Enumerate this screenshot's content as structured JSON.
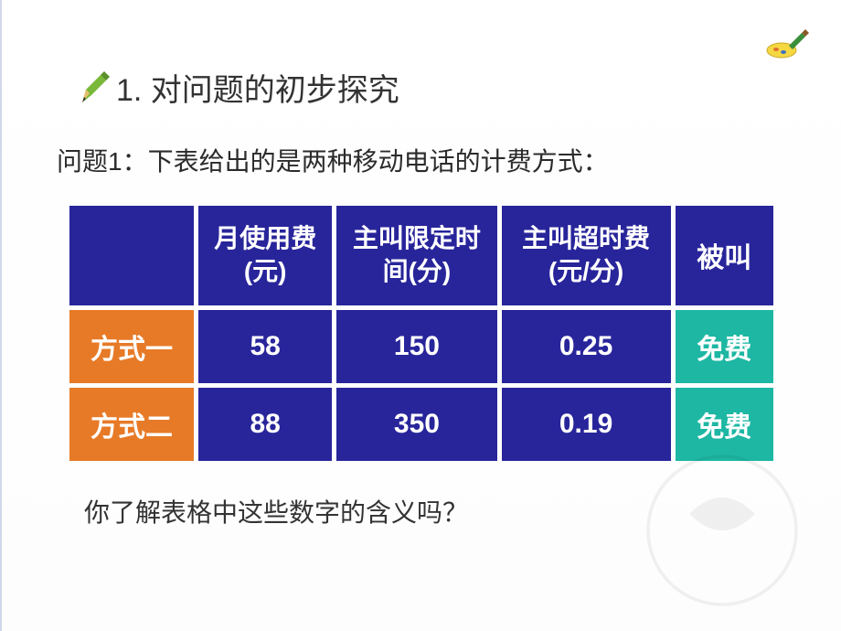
{
  "heading": "1. 对问题的初步探究",
  "problem_label": "问题1：下表给出的是两种移动电话的计费方式：",
  "footer_question": "你了解表格中这些数字的含义吗？",
  "table": {
    "header_bg": "#28259b",
    "rowlabel_bg": "#e77a27",
    "data_bg": "#28259b",
    "special_bg": "#1db7a3",
    "corner_bg": "#28259b",
    "text_color": "#ffffff",
    "columns": [
      "",
      "月使用费(元)",
      "主叫限定时间(分)",
      "主叫超时费(元/分)",
      "被叫"
    ],
    "rows": [
      {
        "label": "方式一",
        "values": [
          "58",
          "150",
          "0.25",
          "免费"
        ]
      },
      {
        "label": "方式二",
        "values": [
          "88",
          "350",
          "0.19",
          "免费"
        ]
      }
    ],
    "col_widths": [
      "140px",
      "150px",
      "180px",
      "190px",
      "110px"
    ]
  },
  "colors": {
    "heading_text": "#333333",
    "body_text": "#2b2b2b",
    "slide_border": "#d0d8e8"
  },
  "icons": {
    "pencil": "pencil-icon",
    "corner_brush": "brush-icon"
  }
}
